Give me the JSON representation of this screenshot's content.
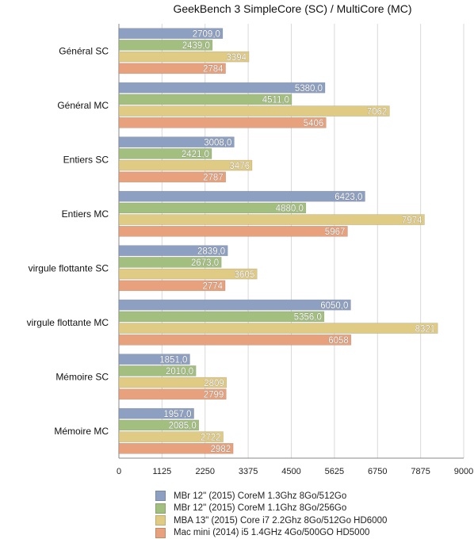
{
  "chart_data": {
    "type": "bar",
    "orientation": "horizontal",
    "title": "GeekBench 3 SimpleCore (SC) / MultiCore (MC)",
    "xlabel": "",
    "ylabel": "",
    "xlim": [
      0,
      9000
    ],
    "x_ticks": [
      "0",
      "1125",
      "2250",
      "3375",
      "4500",
      "5625",
      "6750",
      "7875",
      "9000"
    ],
    "tick_values": [
      0,
      1125,
      2250,
      3375,
      4500,
      5625,
      6750,
      7875,
      9000
    ],
    "grid": true,
    "legend_position": "bottom",
    "categories": [
      "Général SC",
      "Général MC",
      "Entiers SC",
      "Entiers MC",
      "virgule flottante SC",
      "virgule flottante MC",
      "Mémoire SC",
      "Mémoire MC"
    ],
    "series": [
      {
        "name": "MBr 12\" (2015) CoreM 1.3Ghz 8Go/512Go",
        "color": "#8ea0c2",
        "values": [
          2709,
          5380,
          3008,
          6423,
          2839,
          6050,
          1851,
          1957
        ],
        "labels": [
          "2709,0",
          "5380,0",
          "3008,0",
          "6423,0",
          "2839,0",
          "6050,0",
          "1851,0",
          "1957,0"
        ]
      },
      {
        "name": "MBr 12\" (2015) CoreM 1.1Ghz 8Go/256Go",
        "color": "#a3bf7f",
        "values": [
          2439,
          4511,
          2421,
          4880,
          2673,
          5356,
          2010,
          2085
        ],
        "labels": [
          "2439,0",
          "4511,0",
          "2421,0",
          "4880,0",
          "2673,0",
          "5356,0",
          "2010,0",
          "2085,0"
        ]
      },
      {
        "name": "MBA  13\" (2015)  Core i7 2.2Ghz 8Go/512Go HD6000",
        "color": "#e0cb85",
        "values": [
          3394,
          7062,
          3476,
          7974,
          3605,
          8321,
          2809,
          2722
        ],
        "labels": [
          "3394",
          "7062",
          "3476",
          "7974",
          "3605",
          "8321",
          "2809",
          "2722"
        ]
      },
      {
        "name": "Mac mini (2014) i5 1.4GHz 4Go/500GO HD5000",
        "color": "#e7a17c",
        "values": [
          2784,
          5406,
          2787,
          5967,
          2774,
          6058,
          2799,
          2982
        ],
        "labels": [
          "2784",
          "5406",
          "2787",
          "5967",
          "2774",
          "6058",
          "2799",
          "2982"
        ]
      }
    ]
  }
}
